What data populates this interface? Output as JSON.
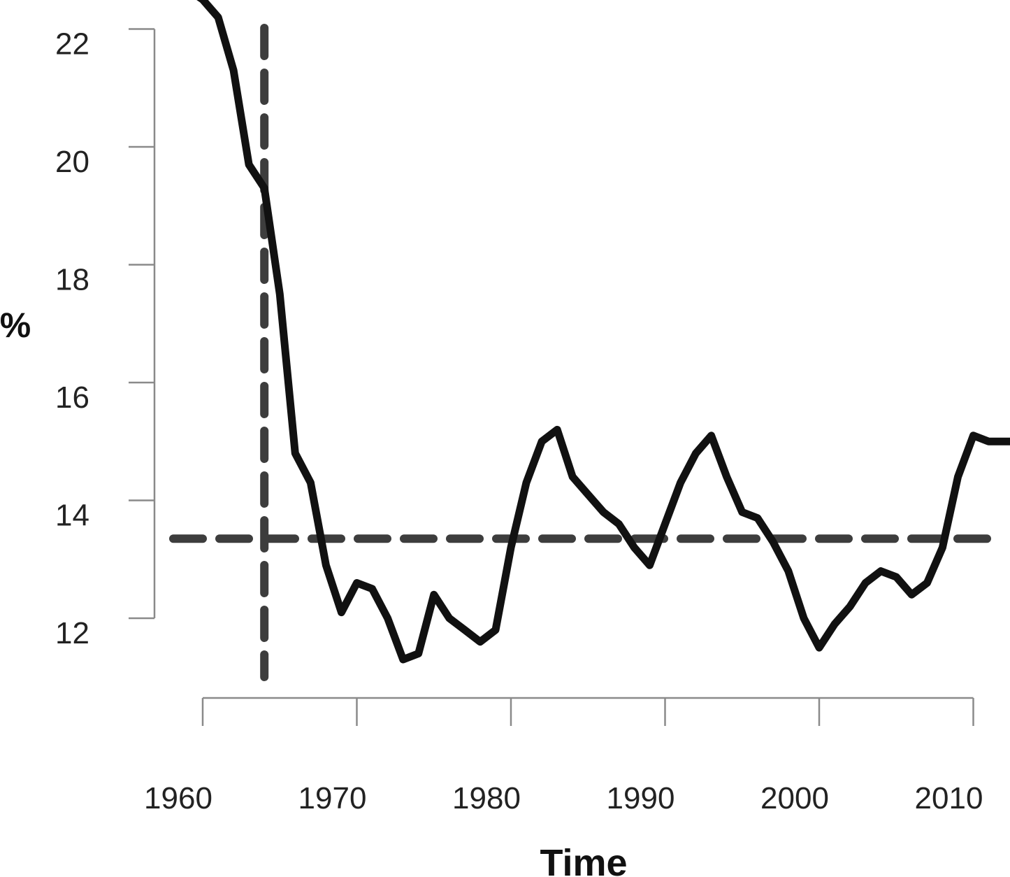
{
  "chart_data": {
    "type": "line",
    "title": "",
    "xlabel": "Time",
    "ylabel": "%",
    "xlim": [
      1960,
      2013
    ],
    "ylim": [
      11,
      22.5
    ],
    "x_ticks": [
      {
        "value": 1960,
        "label": "1960"
      },
      {
        "value": 1970,
        "label": "1970"
      },
      {
        "value": 1980,
        "label": "1980"
      },
      {
        "value": 1990,
        "label": "1990"
      },
      {
        "value": 2000,
        "label": "2000"
      },
      {
        "value": 2010,
        "label": "2010"
      }
    ],
    "y_ticks": [
      {
        "value": 12,
        "label": "12"
      },
      {
        "value": 14,
        "label": "14"
      },
      {
        "value": 16,
        "label": "16"
      },
      {
        "value": 18,
        "label": "18"
      },
      {
        "value": 20,
        "label": "20"
      },
      {
        "value": 22,
        "label": "22"
      }
    ],
    "grid": false,
    "series": [
      {
        "x": [
          1958.9,
          1960,
          1961,
          1962,
          1963,
          1964,
          1965,
          1966,
          1967,
          1968,
          1969,
          1970,
          1971,
          1972,
          1973,
          1974,
          1975,
          1976,
          1977,
          1978,
          1979,
          1980,
          1981,
          1982,
          1983,
          1984,
          1985,
          1986,
          1987,
          1988,
          1989,
          1990,
          1991,
          1992,
          1993,
          1994,
          1995,
          1996,
          1997,
          1998,
          1999,
          2000,
          2001,
          2002,
          2003,
          2004,
          2005,
          2006,
          2007,
          2008,
          2009,
          2010,
          2011,
          2012,
          2013
        ],
        "y": [
          22.7,
          22.5,
          22.2,
          21.3,
          19.7,
          19.3,
          17.5,
          14.8,
          14.3,
          12.9,
          12.1,
          12.6,
          12.5,
          12.0,
          11.3,
          11.4,
          12.4,
          12.0,
          11.8,
          11.6,
          11.8,
          13.2,
          14.3,
          15.0,
          15.2,
          14.4,
          14.1,
          13.8,
          13.6,
          13.2,
          12.9,
          13.6,
          14.3,
          14.8,
          15.1,
          14.4,
          13.8,
          13.7,
          13.3,
          12.8,
          12.0,
          11.5,
          11.9,
          12.2,
          12.6,
          12.8,
          12.7,
          12.4,
          12.6,
          13.2,
          14.4,
          15.1,
          15.0,
          15.0,
          15.0
        ],
        "color": "#111111",
        "style": "solid"
      }
    ],
    "reference_lines": [
      {
        "orientation": "horizontal",
        "value": 13.35,
        "color": "#3d3d3d",
        "style": "dashed"
      },
      {
        "orientation": "vertical",
        "value": 1964,
        "color": "#3d3d3d",
        "style": "dashed"
      }
    ]
  }
}
